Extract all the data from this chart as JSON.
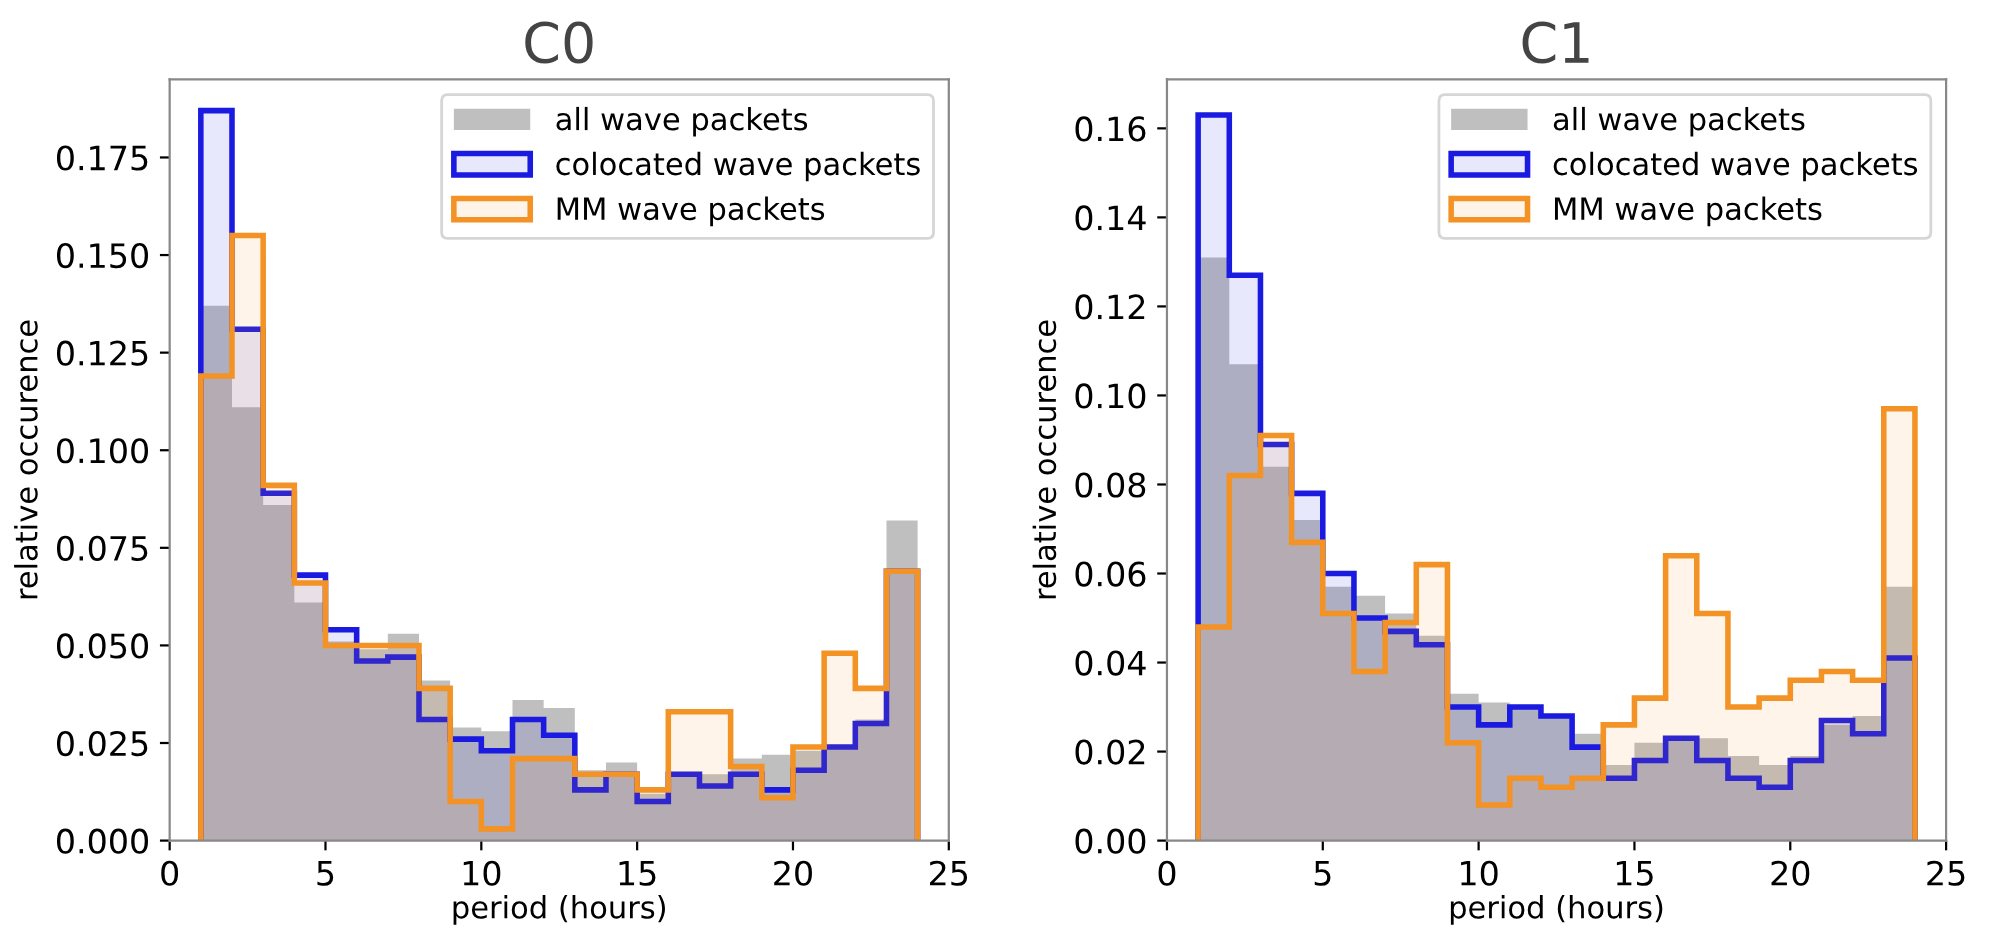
{
  "chart_data": [
    {
      "type": "histogram",
      "title": "C0",
      "xlabel": "period (hours)",
      "ylabel": "relative occurence",
      "bins": [
        1,
        2,
        3,
        4,
        5,
        6,
        7,
        8,
        9,
        10,
        11,
        12,
        13,
        14,
        15,
        16,
        17,
        18,
        19,
        20,
        21,
        22,
        23,
        24
      ],
      "series": [
        {
          "name": "all wave packets",
          "color": "#bfbfbf",
          "values": [
            0.137,
            0.111,
            0.086,
            0.061,
            0.051,
            0.049,
            0.053,
            0.041,
            0.029,
            0.028,
            0.036,
            0.034,
            0.018,
            0.02,
            0.012,
            0.017,
            0.017,
            0.021,
            0.022,
            0.023,
            0.024,
            0.031,
            0.082
          ]
        },
        {
          "name": "colocated wave packets",
          "color": "#1a1ae0",
          "values": [
            0.187,
            0.131,
            0.089,
            0.068,
            0.054,
            0.046,
            0.047,
            0.031,
            0.026,
            0.023,
            0.031,
            0.027,
            0.013,
            0.017,
            0.01,
            0.017,
            0.014,
            0.017,
            0.013,
            0.018,
            0.024,
            0.03,
            0.069
          ]
        },
        {
          "name": "MM wave packets",
          "color": "#f39325",
          "values": [
            0.119,
            0.155,
            0.091,
            0.066,
            0.05,
            0.05,
            0.05,
            0.039,
            0.01,
            0.003,
            0.021,
            0.021,
            0.017,
            0.017,
            0.013,
            0.033,
            0.033,
            0.019,
            0.011,
            0.024,
            0.048,
            0.039,
            0.069
          ]
        }
      ],
      "xlim": [
        0,
        25
      ],
      "xticks": [
        0,
        5,
        10,
        15,
        20,
        25
      ],
      "ylim": [
        0,
        0.195
      ],
      "yticks": [
        {
          "value": 0,
          "label": "0.000"
        },
        {
          "value": 0.025,
          "label": "0.025"
        },
        {
          "value": 0.05,
          "label": "0.050"
        },
        {
          "value": 0.075,
          "label": "0.075"
        },
        {
          "value": 0.1,
          "label": "0.100"
        },
        {
          "value": 0.125,
          "label": "0.125"
        },
        {
          "value": 0.15,
          "label": "0.150"
        },
        {
          "value": 0.175,
          "label": "0.175"
        }
      ],
      "legend": "top right",
      "grid": false
    },
    {
      "type": "histogram",
      "title": "C1",
      "xlabel": "period (hours)",
      "ylabel": "relative occurence",
      "bins": [
        1,
        2,
        3,
        4,
        5,
        6,
        7,
        8,
        9,
        10,
        11,
        12,
        13,
        14,
        15,
        16,
        17,
        18,
        19,
        20,
        21,
        22,
        23,
        24
      ],
      "series": [
        {
          "name": "all wave packets",
          "color": "#bfbfbf",
          "values": [
            0.131,
            0.107,
            0.084,
            0.072,
            0.057,
            0.055,
            0.051,
            0.046,
            0.033,
            0.031,
            0.03,
            0.028,
            0.024,
            0.017,
            0.022,
            0.023,
            0.023,
            0.019,
            0.017,
            0.019,
            0.026,
            0.028,
            0.057
          ]
        },
        {
          "name": "colocated wave packets",
          "color": "#1a1ae0",
          "values": [
            0.163,
            0.127,
            0.089,
            0.078,
            0.06,
            0.05,
            0.047,
            0.044,
            0.03,
            0.026,
            0.03,
            0.028,
            0.021,
            0.014,
            0.018,
            0.023,
            0.018,
            0.014,
            0.012,
            0.018,
            0.027,
            0.024,
            0.041
          ]
        },
        {
          "name": "MM wave packets",
          "color": "#f39325",
          "values": [
            0.048,
            0.082,
            0.091,
            0.067,
            0.051,
            0.038,
            0.049,
            0.062,
            0.022,
            0.008,
            0.014,
            0.012,
            0.014,
            0.026,
            0.032,
            0.064,
            0.051,
            0.03,
            0.032,
            0.036,
            0.038,
            0.036,
            0.097
          ]
        }
      ],
      "xlim": [
        0,
        25
      ],
      "xticks": [
        0,
        5,
        10,
        15,
        20,
        25
      ],
      "ylim": [
        0,
        0.171
      ],
      "yticks": [
        {
          "value": 0,
          "label": "0.00"
        },
        {
          "value": 0.02,
          "label": "0.02"
        },
        {
          "value": 0.04,
          "label": "0.04"
        },
        {
          "value": 0.06,
          "label": "0.06"
        },
        {
          "value": 0.08,
          "label": "0.08"
        },
        {
          "value": 0.1,
          "label": "0.10"
        },
        {
          "value": 0.12,
          "label": "0.12"
        },
        {
          "value": 0.14,
          "label": "0.14"
        },
        {
          "value": 0.16,
          "label": "0.16"
        }
      ],
      "legend": "top right",
      "grid": false
    }
  ]
}
